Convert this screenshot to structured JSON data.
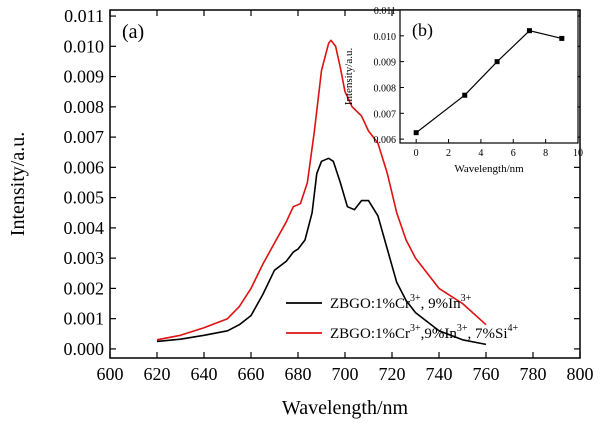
{
  "chart_data": [
    {
      "panel": "(a)",
      "type": "line",
      "xlabel": "Wavelength/nm",
      "ylabel": "Intensity/a.u.",
      "xlim": [
        600,
        800
      ],
      "ylim": [
        -0.0003,
        0.0112
      ],
      "xticks": [
        600,
        620,
        640,
        660,
        680,
        700,
        720,
        740,
        760,
        780,
        800
      ],
      "yticks": [
        "0.000",
        "0.001",
        "0.002",
        "0.003",
        "0.004",
        "0.005",
        "0.006",
        "0.007",
        "0.008",
        "0.009",
        "0.010",
        "0.011"
      ],
      "legend_position": "bottom-right",
      "series": [
        {
          "legend_parts": [
            {
              "text": "ZBGO:1%Cr"
            },
            {
              "text": "3+",
              "sup": true
            },
            {
              "text": ", 9%In"
            },
            {
              "text": "3+",
              "sup": true
            }
          ],
          "color": "#000000",
          "points": [
            [
              620,
              0.00025
            ],
            [
              630,
              0.00032
            ],
            [
              640,
              0.00045
            ],
            [
              650,
              0.0006
            ],
            [
              655,
              0.0008
            ],
            [
              660,
              0.0011
            ],
            [
              665,
              0.0018
            ],
            [
              670,
              0.0026
            ],
            [
              675,
              0.0029
            ],
            [
              678,
              0.0032
            ],
            [
              680,
              0.0033
            ],
            [
              683,
              0.0036
            ],
            [
              686,
              0.0045
            ],
            [
              688,
              0.0058
            ],
            [
              690,
              0.0062
            ],
            [
              693,
              0.0063
            ],
            [
              695,
              0.0062
            ],
            [
              698,
              0.0055
            ],
            [
              701,
              0.0047
            ],
            [
              704,
              0.0046
            ],
            [
              707,
              0.0049
            ],
            [
              710,
              0.0049
            ],
            [
              714,
              0.0044
            ],
            [
              718,
              0.0033
            ],
            [
              722,
              0.0022
            ],
            [
              726,
              0.0016
            ],
            [
              730,
              0.0012
            ],
            [
              740,
              0.0006
            ],
            [
              750,
              0.0003
            ],
            [
              760,
              0.00015
            ]
          ]
        },
        {
          "legend_parts": [
            {
              "text": "ZBGO:1%Cr"
            },
            {
              "text": "3+",
              "sup": true
            },
            {
              "text": ",9%In"
            },
            {
              "text": "3+",
              "sup": true
            },
            {
              "text": ", 7%Si"
            },
            {
              "text": "4+",
              "sup": true
            }
          ],
          "color": "#e01010",
          "points": [
            [
              620,
              0.0003
            ],
            [
              630,
              0.00045
            ],
            [
              640,
              0.0007
            ],
            [
              650,
              0.001
            ],
            [
              655,
              0.0014
            ],
            [
              660,
              0.002
            ],
            [
              665,
              0.0028
            ],
            [
              670,
              0.0035
            ],
            [
              675,
              0.0042
            ],
            [
              678,
              0.0047
            ],
            [
              681,
              0.0048
            ],
            [
              684,
              0.0055
            ],
            [
              687,
              0.0072
            ],
            [
              690,
              0.0092
            ],
            [
              693,
              0.0101
            ],
            [
              694,
              0.0102
            ],
            [
              696,
              0.01
            ],
            [
              698,
              0.0093
            ],
            [
              700,
              0.0085
            ],
            [
              703,
              0.008
            ],
            [
              707,
              0.0077
            ],
            [
              710,
              0.0072
            ],
            [
              714,
              0.0068
            ],
            [
              718,
              0.0058
            ],
            [
              722,
              0.0045
            ],
            [
              726,
              0.0036
            ],
            [
              730,
              0.003
            ],
            [
              740,
              0.002
            ],
            [
              750,
              0.0015
            ],
            [
              760,
              0.0008
            ]
          ]
        }
      ]
    },
    {
      "panel": "(b)",
      "type": "line",
      "xlabel": "Wavelength/nm",
      "ylabel": "Intensity/a.u.",
      "xlim": [
        -1,
        10
      ],
      "ylim": [
        0.00585,
        0.011
      ],
      "xticks": [
        0,
        2,
        4,
        6,
        8,
        10
      ],
      "yticks": [
        "0.006",
        "0.007",
        "0.008",
        "0.009",
        "0.010",
        "0.011"
      ],
      "marker": "square",
      "color": "#000000",
      "x": [
        0,
        3,
        5,
        7,
        9
      ],
      "y": [
        0.00625,
        0.0077,
        0.009,
        0.0102,
        0.0099
      ]
    }
  ]
}
